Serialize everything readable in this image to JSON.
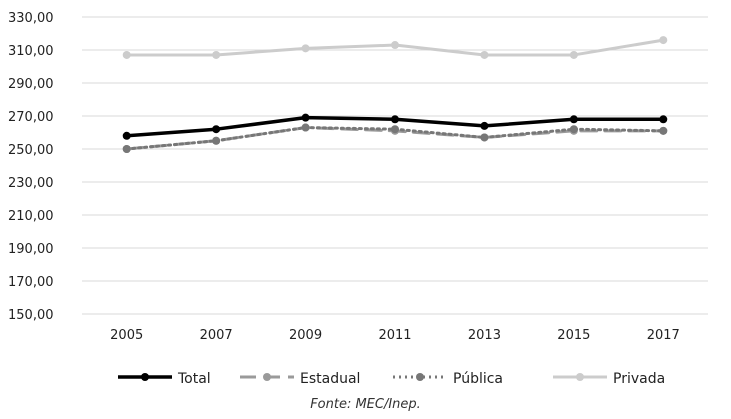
{
  "chart_data": {
    "type": "line",
    "x": [
      "2005",
      "2007",
      "2009",
      "2011",
      "2013",
      "2015",
      "2017"
    ],
    "series": [
      {
        "name": "Total",
        "values": [
          258,
          262,
          269,
          268,
          264,
          268,
          268
        ],
        "color": "#000000",
        "style": "solid"
      },
      {
        "name": "Estadual",
        "values": [
          250,
          255,
          263,
          261,
          257,
          261,
          261
        ],
        "color": "#9a9a9a",
        "style": "dashed"
      },
      {
        "name": "Pública",
        "values": [
          250,
          255,
          263,
          262,
          257,
          262,
          261
        ],
        "color": "#777777",
        "style": "dotted"
      },
      {
        "name": "Privada",
        "values": [
          307,
          307,
          311,
          313,
          307,
          307,
          316
        ],
        "color": "#cccccc",
        "style": "solid"
      }
    ],
    "y_ticks": [
      "150,00",
      "170,00",
      "190,00",
      "210,00",
      "230,00",
      "250,00",
      "270,00",
      "290,00",
      "310,00",
      "330,00"
    ],
    "ylim": [
      150,
      330
    ],
    "grid": true,
    "legend_position": "bottom"
  },
  "source": "Fonte: MEC/Inep."
}
